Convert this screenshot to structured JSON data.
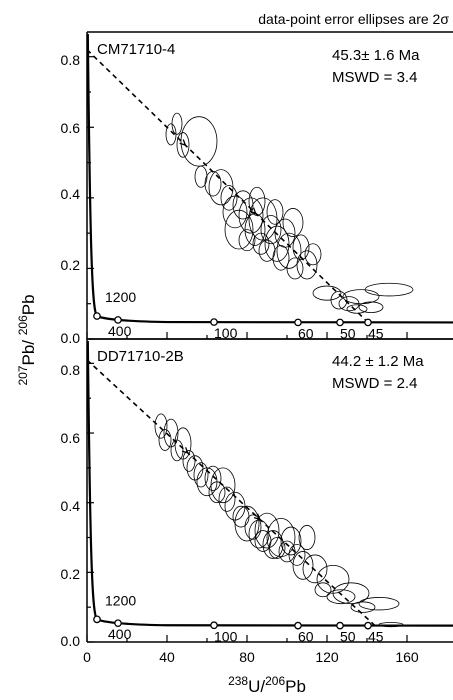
{
  "note": "data-point error ellipses are 2σ",
  "axes": {
    "xlabel": {
      "base": "U/",
      "sup1": "238",
      "sup2": "206",
      "tail": "Pb"
    },
    "ylabel": {
      "sup1": "207",
      "mid": "Pb/ ",
      "sup2": "206",
      "tail": "Pb"
    },
    "x_ticks": [
      "0",
      "40",
      "80",
      "120",
      "160"
    ],
    "y_ticks": [
      "0.0",
      "0.2",
      "0.4",
      "0.6",
      "0.8"
    ]
  },
  "chart_data": [
    {
      "type": "scatter",
      "subtype": "Tera-Wasserburg concordia with error ellipses",
      "sample": "CM71710-4",
      "age": "45.3± 1.6 Ma",
      "mswd": "MSWD = 3.4",
      "xlim": [
        0,
        175
      ],
      "ylim": [
        0,
        0.87
      ],
      "concordia_age_labels": [
        "1200",
        "400",
        "100",
        "60",
        "50",
        "45"
      ],
      "concordia_points": [
        {
          "age": "1200",
          "x": 5.0,
          "y": 0.065
        },
        {
          "age": "400",
          "x": 15.5,
          "y": 0.054
        },
        {
          "age": "100",
          "x": 63.5,
          "y": 0.048
        },
        {
          "age": "60",
          "x": 105.5,
          "y": 0.047
        },
        {
          "age": "50",
          "x": 126.5,
          "y": 0.047
        },
        {
          "age": "45",
          "x": 140.5,
          "y": 0.047
        }
      ],
      "discordia": {
        "x0": 0,
        "y0": 0.82,
        "x1": 140.5,
        "y1": 0.047
      },
      "ellipses": [
        {
          "x": 42,
          "y": 0.58,
          "sx": 2.5,
          "sy": 0.03
        },
        {
          "x": 45,
          "y": 0.61,
          "sx": 2.5,
          "sy": 0.03
        },
        {
          "x": 48,
          "y": 0.55,
          "sx": 3,
          "sy": 0.035
        },
        {
          "x": 56,
          "y": 0.56,
          "sx": 9,
          "sy": 0.07
        },
        {
          "x": 57,
          "y": 0.46,
          "sx": 3,
          "sy": 0.03
        },
        {
          "x": 63,
          "y": 0.44,
          "sx": 4,
          "sy": 0.035
        },
        {
          "x": 67,
          "y": 0.43,
          "sx": 6,
          "sy": 0.05
        },
        {
          "x": 71,
          "y": 0.4,
          "sx": 4,
          "sy": 0.035
        },
        {
          "x": 74,
          "y": 0.36,
          "sx": 6,
          "sy": 0.045
        },
        {
          "x": 76,
          "y": 0.31,
          "sx": 7,
          "sy": 0.055
        },
        {
          "x": 78,
          "y": 0.38,
          "sx": 5,
          "sy": 0.04
        },
        {
          "x": 80,
          "y": 0.28,
          "sx": 4,
          "sy": 0.03
        },
        {
          "x": 82,
          "y": 0.35,
          "sx": 6,
          "sy": 0.05
        },
        {
          "x": 84,
          "y": 0.31,
          "sx": 5,
          "sy": 0.045
        },
        {
          "x": 85,
          "y": 0.39,
          "sx": 4,
          "sy": 0.04
        },
        {
          "x": 87,
          "y": 0.27,
          "sx": 4,
          "sy": 0.03
        },
        {
          "x": 88,
          "y": 0.34,
          "sx": 7,
          "sy": 0.06
        },
        {
          "x": 90,
          "y": 0.25,
          "sx": 4,
          "sy": 0.03
        },
        {
          "x": 92,
          "y": 0.31,
          "sx": 5,
          "sy": 0.04
        },
        {
          "x": 94,
          "y": 0.36,
          "sx": 4,
          "sy": 0.035
        },
        {
          "x": 95,
          "y": 0.27,
          "sx": 6,
          "sy": 0.05
        },
        {
          "x": 97,
          "y": 0.23,
          "sx": 4,
          "sy": 0.035
        },
        {
          "x": 99,
          "y": 0.3,
          "sx": 5,
          "sy": 0.04
        },
        {
          "x": 101,
          "y": 0.25,
          "sx": 6,
          "sy": 0.05
        },
        {
          "x": 103,
          "y": 0.33,
          "sx": 5,
          "sy": 0.04
        },
        {
          "x": 104,
          "y": 0.2,
          "sx": 4,
          "sy": 0.03
        },
        {
          "x": 107,
          "y": 0.26,
          "sx": 4,
          "sy": 0.035
        },
        {
          "x": 110,
          "y": 0.21,
          "sx": 5,
          "sy": 0.04
        },
        {
          "x": 113,
          "y": 0.24,
          "sx": 4,
          "sy": 0.03
        },
        {
          "x": 120,
          "y": 0.13,
          "sx": 7,
          "sy": 0.02
        },
        {
          "x": 126,
          "y": 0.11,
          "sx": 4,
          "sy": 0.025
        },
        {
          "x": 131,
          "y": 0.1,
          "sx": 5,
          "sy": 0.02
        },
        {
          "x": 137,
          "y": 0.12,
          "sx": 9,
          "sy": 0.02
        },
        {
          "x": 151,
          "y": 0.14,
          "sx": 12,
          "sy": 0.018
        },
        {
          "x": 142,
          "y": 0.09,
          "sx": 6,
          "sy": 0.015
        },
        {
          "x": 135,
          "y": 0.085,
          "sx": 5,
          "sy": 0.012
        }
      ]
    },
    {
      "type": "scatter",
      "subtype": "Tera-Wasserburg concordia with error ellipses",
      "sample": "DD71710-2B",
      "age": "44.2 ± 1.2 Ma",
      "mswd": "MSWD = 2.4",
      "xlim": [
        0,
        175
      ],
      "ylim": [
        0,
        0.87
      ],
      "concordia_age_labels": [
        "1200",
        "400",
        "100",
        "60",
        "50",
        "45"
      ],
      "concordia_points": [
        {
          "age": "1200",
          "x": 5.0,
          "y": 0.065
        },
        {
          "age": "400",
          "x": 15.5,
          "y": 0.054
        },
        {
          "age": "100",
          "x": 63.5,
          "y": 0.048
        },
        {
          "age": "60",
          "x": 105.5,
          "y": 0.047
        },
        {
          "age": "50",
          "x": 126.5,
          "y": 0.047
        },
        {
          "age": "45",
          "x": 140.5,
          "y": 0.047
        }
      ],
      "discordia": {
        "x0": 0,
        "y0": 0.81,
        "x1": 144,
        "y1": 0.047
      },
      "ellipses": [
        {
          "x": 37,
          "y": 0.62,
          "sx": 3,
          "sy": 0.035
        },
        {
          "x": 39,
          "y": 0.58,
          "sx": 3,
          "sy": 0.03
        },
        {
          "x": 42,
          "y": 0.6,
          "sx": 3.5,
          "sy": 0.04
        },
        {
          "x": 45,
          "y": 0.55,
          "sx": 3,
          "sy": 0.03
        },
        {
          "x": 48,
          "y": 0.57,
          "sx": 4,
          "sy": 0.045
        },
        {
          "x": 51,
          "y": 0.52,
          "sx": 3,
          "sy": 0.03
        },
        {
          "x": 54,
          "y": 0.5,
          "sx": 4,
          "sy": 0.035
        },
        {
          "x": 57,
          "y": 0.48,
          "sx": 3.5,
          "sy": 0.035
        },
        {
          "x": 60,
          "y": 0.46,
          "sx": 5,
          "sy": 0.04
        },
        {
          "x": 63,
          "y": 0.47,
          "sx": 4,
          "sy": 0.035
        },
        {
          "x": 65,
          "y": 0.43,
          "sx": 4,
          "sy": 0.03
        },
        {
          "x": 68,
          "y": 0.45,
          "sx": 6,
          "sy": 0.05
        },
        {
          "x": 70,
          "y": 0.41,
          "sx": 4,
          "sy": 0.035
        },
        {
          "x": 74,
          "y": 0.39,
          "sx": 5,
          "sy": 0.04
        },
        {
          "x": 77,
          "y": 0.36,
          "sx": 4,
          "sy": 0.03
        },
        {
          "x": 80,
          "y": 0.34,
          "sx": 6,
          "sy": 0.05
        },
        {
          "x": 83,
          "y": 0.33,
          "sx": 4,
          "sy": 0.035
        },
        {
          "x": 86,
          "y": 0.31,
          "sx": 5,
          "sy": 0.04
        },
        {
          "x": 88,
          "y": 0.29,
          "sx": 4,
          "sy": 0.03
        },
        {
          "x": 90,
          "y": 0.32,
          "sx": 6,
          "sy": 0.05
        },
        {
          "x": 93,
          "y": 0.28,
          "sx": 5,
          "sy": 0.04
        },
        {
          "x": 95,
          "y": 0.27,
          "sx": 4,
          "sy": 0.03
        },
        {
          "x": 97,
          "y": 0.3,
          "sx": 7,
          "sy": 0.055
        },
        {
          "x": 100,
          "y": 0.26,
          "sx": 4,
          "sy": 0.03
        },
        {
          "x": 102,
          "y": 0.29,
          "sx": 5,
          "sy": 0.04
        },
        {
          "x": 105,
          "y": 0.25,
          "sx": 4,
          "sy": 0.03
        },
        {
          "x": 108,
          "y": 0.22,
          "sx": 5,
          "sy": 0.04
        },
        {
          "x": 110,
          "y": 0.3,
          "sx": 4,
          "sy": 0.035
        },
        {
          "x": 114,
          "y": 0.21,
          "sx": 6,
          "sy": 0.04
        },
        {
          "x": 118,
          "y": 0.15,
          "sx": 4,
          "sy": 0.02
        },
        {
          "x": 123,
          "y": 0.18,
          "sx": 8,
          "sy": 0.04
        },
        {
          "x": 127,
          "y": 0.13,
          "sx": 7,
          "sy": 0.02
        },
        {
          "x": 132,
          "y": 0.14,
          "sx": 9,
          "sy": 0.03
        },
        {
          "x": 138,
          "y": 0.1,
          "sx": 6,
          "sy": 0.015
        },
        {
          "x": 146,
          "y": 0.11,
          "sx": 10,
          "sy": 0.018
        },
        {
          "x": 152,
          "y": 0.05,
          "sx": 6,
          "sy": 0.006
        }
      ]
    }
  ]
}
